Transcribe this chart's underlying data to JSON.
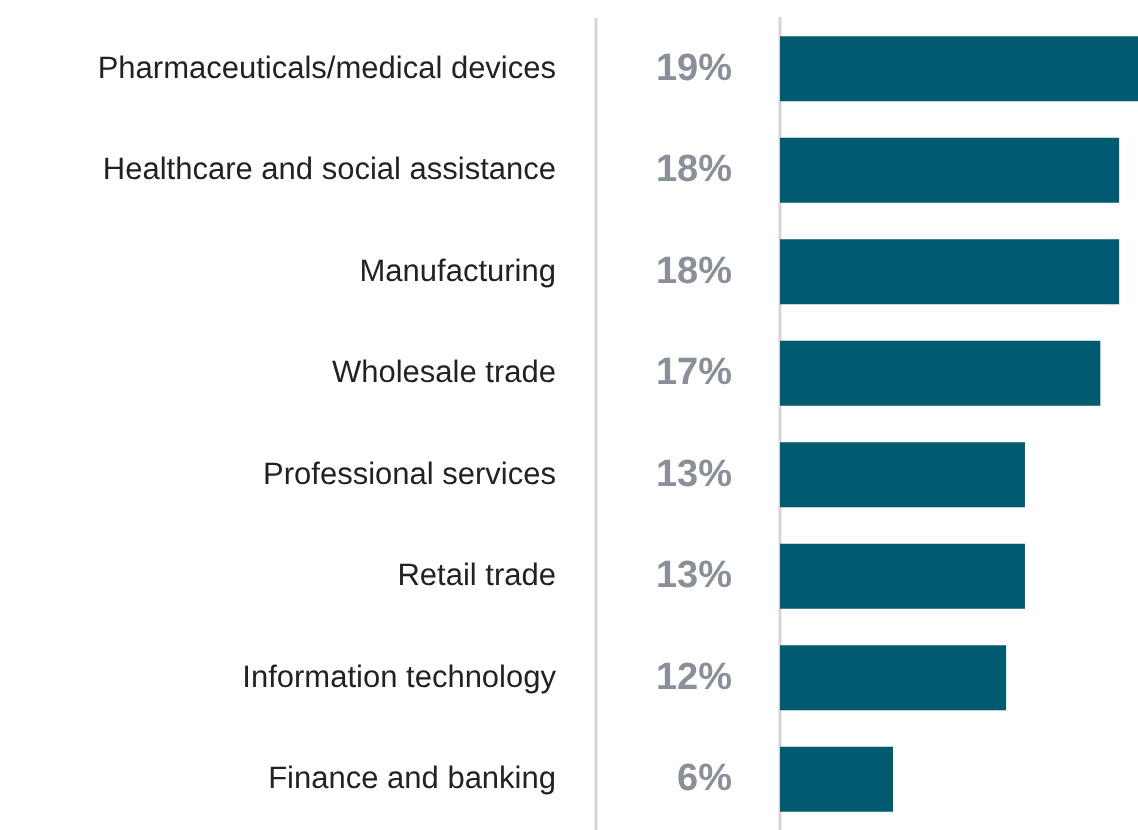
{
  "chart_data": {
    "type": "bar",
    "orientation": "horizontal",
    "categories": [
      "Pharmaceuticals/medical devices",
      "Healthcare and social assistance",
      "Manufacturing",
      "Wholesale trade",
      "Professional services",
      "Retail trade",
      "Information technology",
      "Finance and banking"
    ],
    "values": [
      19,
      18,
      18,
      17,
      13,
      13,
      12,
      6
    ],
    "value_labels": [
      "19%",
      "18%",
      "18%",
      "17%",
      "13%",
      "13%",
      "12%",
      "6%"
    ],
    "color": "#005a70"
  }
}
